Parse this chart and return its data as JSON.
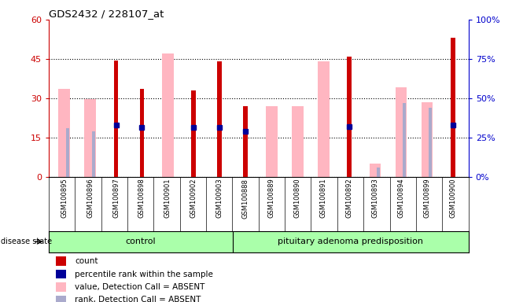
{
  "title": "GDS2432 / 228107_at",
  "samples": [
    "GSM100895",
    "GSM100896",
    "GSM100897",
    "GSM100898",
    "GSM100901",
    "GSM100902",
    "GSM100903",
    "GSM100888",
    "GSM100889",
    "GSM100890",
    "GSM100891",
    "GSM100892",
    "GSM100893",
    "GSM100894",
    "GSM100899",
    "GSM100900"
  ],
  "control_count": 7,
  "group_labels": [
    "control",
    "pituitary adenoma predisposition"
  ],
  "red_bars": [
    0,
    0,
    44.5,
    33.5,
    0,
    33.0,
    44.0,
    27.0,
    0,
    0,
    0,
    46.0,
    0,
    0,
    0,
    53.0
  ],
  "pink_bars": [
    33.5,
    29.5,
    0,
    0,
    47.0,
    0,
    0,
    0,
    27.0,
    27.0,
    44.0,
    0,
    5.0,
    34.0,
    28.5,
    0
  ],
  "blue_pct": [
    0,
    0,
    33.0,
    31.5,
    0,
    31.5,
    31.5,
    29.0,
    0,
    0,
    0,
    32.0,
    0,
    0,
    0,
    33.0
  ],
  "lb_pct": [
    31.0,
    29.0,
    0,
    0,
    0,
    0,
    0,
    0,
    0,
    0,
    0,
    0,
    6.0,
    47.0,
    44.0,
    0
  ],
  "ylim_left": [
    0,
    60
  ],
  "ylim_right": [
    0,
    100
  ],
  "yticks_left": [
    0,
    15,
    30,
    45,
    60
  ],
  "yticks_right": [
    0,
    25,
    50,
    75,
    100
  ],
  "colors": {
    "red": "#CC0000",
    "pink": "#FFB6C1",
    "blue": "#000099",
    "light_blue": "#AAAACC",
    "group_bg": "#AAFFAA",
    "gray_bg": "#CCCCCC",
    "left_tick": "#CC0000",
    "right_tick": "#0000CC"
  },
  "legend_items": [
    {
      "label": "count",
      "color": "#CC0000"
    },
    {
      "label": "percentile rank within the sample",
      "color": "#000099"
    },
    {
      "label": "value, Detection Call = ABSENT",
      "color": "#FFB6C1"
    },
    {
      "label": "rank, Detection Call = ABSENT",
      "color": "#AAAACC"
    }
  ]
}
